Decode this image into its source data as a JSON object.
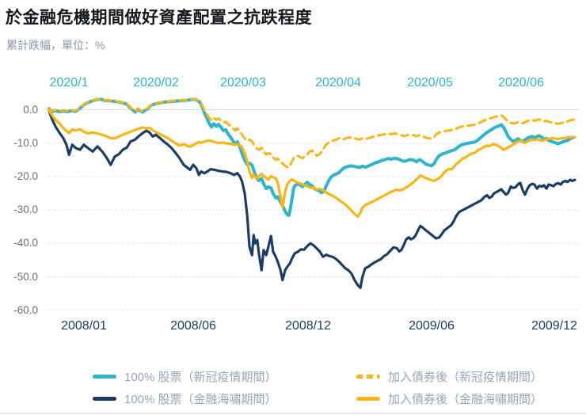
{
  "page": {
    "title": "於金融危機期間做好資產配置之抗跌程度",
    "subtitle": "累計跌幅，單位：%"
  },
  "chart_data": {
    "type": "line",
    "title": "於金融危機期間做好資產配置之抗跌程度",
    "ylabel": "累計跌幅，單位：%",
    "ylim": [
      -60,
      4
    ],
    "grid": "dotted-horizontal",
    "legend_position": "bottom",
    "y_ticks": [
      "0.0",
      "-10.0",
      "-20.0",
      "-30.0",
      "-40.0",
      "-50.0",
      "-60.0"
    ],
    "y_tick_values": [
      0,
      -10,
      -20,
      -30,
      -40,
      -50,
      -60
    ],
    "top_axis": {
      "color": "#2bb6cd",
      "labels": [
        "2020/1",
        "2020/02",
        "2020/03",
        "2020/04",
        "2020/05",
        "2020/06"
      ]
    },
    "bottom_axis": {
      "color": "#1c3e66",
      "labels": [
        "2008/01",
        "2008/06",
        "2008/12",
        "2009/06",
        "2009/12"
      ]
    },
    "t_crisis": [
      0,
      0.6,
      1.2,
      2.0,
      2.7,
      3.3,
      3.8,
      4.4,
      5.1,
      5.9,
      6.6,
      7.4,
      8.3,
      9.2,
      10.1,
      11.0,
      11.7,
      12.5,
      13.3,
      14.0,
      14.8,
      15.5,
      16.3,
      17.0,
      17.8,
      18.5,
      19.1,
      19.7,
      20.3,
      21.1,
      21.8,
      22.6,
      23.3,
      24.1,
      24.8,
      25.6,
      26.4,
      26.8,
      27.4,
      28.0,
      28.5,
      28.9,
      29.5,
      30.1,
      30.7,
      31.5,
      32.2,
      33.0,
      33.7,
      34.5,
      35.2,
      35.8,
      36.3,
      36.7,
      37.2,
      37.7,
      38.1,
      38.6,
      38.9,
      39.2,
      39.6,
      39.9,
      40.4,
      40.8,
      41.3,
      41.7,
      42.2,
      42.6,
      43.1,
      43.5,
      44.0,
      44.4,
      44.9,
      45.3,
      45.8,
      46.2,
      46.7,
      47.3,
      47.9,
      48.5,
      49.1,
      49.7,
      50.3,
      50.9,
      51.5,
      52.1,
      52.7,
      53.3,
      53.9,
      54.5,
      55.1,
      55.7,
      56.3,
      56.9,
      57.5,
      58.1,
      58.7,
      59.2,
      59.6,
      60.1,
      60.7,
      61.3,
      61.9,
      62.5,
      63.1,
      63.7,
      64.3,
      64.9,
      65.5,
      66.1,
      66.6,
      67.0,
      67.5,
      67.9,
      68.4,
      68.8,
      69.3,
      69.7,
      70.2,
      70.6,
      71.1,
      71.5,
      72.1,
      72.7,
      73.2,
      73.6,
      74.2,
      74.7,
      75.1,
      75.6,
      76.0,
      76.5,
      77.0,
      77.4,
      78.0,
      78.6,
      79.2,
      79.8,
      80.4,
      81.0,
      81.6,
      82.2,
      82.8,
      83.3,
      83.7,
      84.2,
      84.6,
      85.1,
      85.5,
      86.0,
      86.4,
      86.9,
      87.3,
      87.8,
      88.2,
      88.7,
      89.2,
      89.6,
      90.1,
      90.5,
      91.0,
      91.4,
      91.9,
      92.3,
      92.8,
      93.2,
      93.7,
      94.1,
      94.6,
      95.0,
      95.5,
      95.9,
      96.4,
      96.8,
      97.3,
      97.7,
      98.2,
      98.6,
      99.1,
      99.5,
      100
    ],
    "t_covid": [
      0,
      0.6,
      1.2,
      2.0,
      2.7,
      3.5,
      4.2,
      5.0,
      5.7,
      6.3,
      6.9,
      7.5,
      8.1,
      8.7,
      9.3,
      9.9,
      10.5,
      11.1,
      11.7,
      12.3,
      13.0,
      13.6,
      14.2,
      14.8,
      15.4,
      16.0,
      16.4,
      16.9,
      17.3,
      17.8,
      18.2,
      18.7,
      19.3,
      19.9,
      20.5,
      21.2,
      22.0,
      22.7,
      23.5,
      24.2,
      25.0,
      25.8,
      26.5,
      27.3,
      28.0,
      28.6,
      29.1,
      29.5,
      30.0,
      30.4,
      30.9,
      31.3,
      31.8,
      32.2,
      32.7,
      33.1,
      33.6,
      34.0,
      34.5,
      34.9,
      35.4,
      35.8,
      36.3,
      36.7,
      37.2,
      37.7,
      38.1,
      38.6,
      39.0,
      39.5,
      39.9,
      40.4,
      40.8,
      41.3,
      41.7,
      42.2,
      42.6,
      43.1,
      43.5,
      44.0,
      44.4,
      44.9,
      45.3,
      45.6,
      45.9,
      46.2,
      46.5,
      46.8,
      47.3,
      47.7,
      48.2,
      48.6,
      49.1,
      49.5,
      50.0,
      50.5,
      50.9,
      51.4,
      51.8,
      52.3,
      52.7,
      53.2,
      53.6,
      54.1,
      54.5,
      55.0,
      55.4,
      56.0,
      56.6,
      57.2,
      57.8,
      58.4,
      59.0,
      59.6,
      60.2,
      60.8,
      61.4,
      62.0,
      62.7,
      63.3,
      63.9,
      64.5,
      65.1,
      65.7,
      66.3,
      66.9,
      67.5,
      68.1,
      68.7,
      69.3,
      69.9,
      70.5,
      71.1,
      71.7,
      72.3,
      72.7,
      73.2,
      73.6,
      74.1,
      74.7,
      75.3,
      75.9,
      76.5,
      77.1,
      77.7,
      78.3,
      78.9,
      79.5,
      80.1,
      80.7,
      81.3,
      81.9,
      82.5,
      83.1,
      83.7,
      84.3,
      84.9,
      85.5,
      86.0,
      86.4,
      86.9,
      87.3,
      87.8,
      88.2,
      88.7,
      89.2,
      89.6,
      90.1,
      90.5,
      91.0,
      91.4,
      91.9,
      92.3,
      92.8,
      93.2,
      93.7,
      94.1,
      94.6,
      95.0,
      95.5,
      95.9,
      96.4,
      96.8,
      97.3,
      97.7,
      98.2,
      98.6,
      99.1,
      99.5,
      99.8
    ],
    "series": [
      {
        "key": "crisis-stock",
        "name": "100% 股票（金融海嘯期間）",
        "color": "#1c3e66",
        "dash": "solid",
        "width": 3.2,
        "t_ref": "t_crisis",
        "values": [
          -0.5,
          -3,
          -5,
          -7,
          -8.5,
          -10.5,
          -13.5,
          -10.5,
          -11.5,
          -12,
          -10.5,
          -11.5,
          -12.5,
          -11,
          -12.5,
          -14.5,
          -16.5,
          -14,
          -13.3,
          -12,
          -11.3,
          -9.5,
          -9,
          -8,
          -7,
          -6.3,
          -6.8,
          -8,
          -7.5,
          -8.5,
          -9.5,
          -10.5,
          -11.5,
          -13,
          -14.5,
          -16.5,
          -17.5,
          -18,
          -16.5,
          -17.5,
          -19.5,
          -18.5,
          -19,
          -18.5,
          -17.8,
          -18,
          -18.3,
          -18.5,
          -18.6,
          -19,
          -19.5,
          -19,
          -20,
          -21.5,
          -25,
          -32,
          -41,
          -43.5,
          -37.5,
          -40,
          -39,
          -43,
          -48,
          -42,
          -43.5,
          -41,
          -37.8,
          -42.5,
          -44,
          -45.5,
          -48,
          -51,
          -48,
          -47,
          -46,
          -44.5,
          -43,
          -42.5,
          -41.8,
          -41.9,
          -40.8,
          -40,
          -40.6,
          -41.5,
          -42.5,
          -44,
          -43.4,
          -43.8,
          -44,
          -44.6,
          -45.4,
          -46.4,
          -47.4,
          -48,
          -49,
          -51,
          -52.5,
          -53.3,
          -50,
          -47.5,
          -47,
          -46.3,
          -45.7,
          -45.2,
          -44.7,
          -43.8,
          -43.2,
          -42.2,
          -41.2,
          -41.4,
          -42.4,
          -42,
          -40.3,
          -38.8,
          -38.2,
          -38.8,
          -38.4,
          -37.6,
          -36,
          -34.8,
          -35.3,
          -35.9,
          -36.6,
          -37.4,
          -38,
          -38.5,
          -38.2,
          -37.2,
          -36.2,
          -35.6,
          -35.1,
          -34.5,
          -33.2,
          -31.9,
          -30.6,
          -30.1,
          -29.6,
          -29.1,
          -28.6,
          -28.1,
          -27.6,
          -27.1,
          -26.1,
          -25.6,
          -26.4,
          -26,
          -25.1,
          -24.6,
          -24.3,
          -23.8,
          -24.6,
          -25.4,
          -24.9,
          -23,
          -23.4,
          -23.2,
          -22.3,
          -21.9,
          -24.2,
          -25.4,
          -23.6,
          -22.6,
          -22.2,
          -22.4,
          -23.6,
          -22.8,
          -23,
          -22.6,
          -23.6,
          -22.4,
          -22.6,
          -22.9,
          -22.2,
          -22,
          -22.4,
          -21.6,
          -21.3,
          -21.6,
          -21,
          -21.3,
          -21
        ]
      },
      {
        "key": "covid-stock",
        "name": "100% 股票（新冠疫情期間）",
        "color": "#2bb6cd",
        "dash": "solid",
        "width": 4,
        "t_ref": "t_covid",
        "values": [
          0.3,
          -0.6,
          -0.3,
          -0.6,
          -0.4,
          -0.6,
          -0.3,
          -0.5,
          0.2,
          1,
          1.8,
          2.2,
          2.6,
          2.9,
          3.1,
          3.1,
          2.8,
          2.7,
          2.6,
          2.5,
          2.4,
          2.2,
          2,
          1.6,
          0.6,
          -0.2,
          -0.7,
          0.2,
          -0.3,
          -0.7,
          -0.2,
          0.2,
          1.2,
          1.6,
          1.9,
          2.1,
          2.3,
          2.4,
          2.5,
          2.6,
          2.7,
          2.8,
          2.9,
          3.1,
          3,
          2.4,
          1,
          -0.8,
          -2.5,
          -4,
          -5.2,
          -4.2,
          -5,
          -4.4,
          -5.2,
          -6.2,
          -6,
          -7.2,
          -8.2,
          -9.2,
          -10.4,
          -9.6,
          -11.2,
          -13.2,
          -15.2,
          -16.4,
          -16,
          -16.6,
          -18.6,
          -20.6,
          -21.2,
          -20.6,
          -22.2,
          -23.6,
          -23.1,
          -23.4,
          -25.1,
          -26.4,
          -26.1,
          -27.6,
          -28.6,
          -30.4,
          -31.4,
          -31.6,
          -29.5,
          -26.5,
          -23.5,
          -22.6,
          -22.2,
          -22.5,
          -23,
          -22.4,
          -21.7,
          -22.3,
          -22.8,
          -23.6,
          -24,
          -24.3,
          -24.8,
          -24.4,
          -22.8,
          -21.2,
          -20.2,
          -19.6,
          -19.3,
          -19,
          -18.4,
          -17.5,
          -17.1,
          -16.8,
          -16.9,
          -17.1,
          -17.3,
          -16.9,
          -17.2,
          -16.8,
          -16.4,
          -15.9,
          -15.6,
          -15.2,
          -14.9,
          -14.6,
          -14.8,
          -14.5,
          -14.7,
          -15.1,
          -15.5,
          -15.2,
          -14.9,
          -15.1,
          -15.6,
          -14.9,
          -15.6,
          -16.3,
          -16.6,
          -16.8,
          -16.2,
          -15,
          -13.9,
          -13.3,
          -13,
          -12.6,
          -12.3,
          -12,
          -11.3,
          -10.6,
          -10.3,
          -10.1,
          -9.9,
          -9.8,
          -9.4,
          -8.6,
          -7.8,
          -7,
          -6.4,
          -5.8,
          -5.2,
          -4.9,
          -4.5,
          -5.2,
          -6.6,
          -8,
          -8.9,
          -9.4,
          -9.2,
          -8.7,
          -9.2,
          -9.6,
          -9,
          -8.5,
          -8.2,
          -8,
          -8.4,
          -8,
          -7.8,
          -8.3,
          -8.9,
          -8.6,
          -9.2,
          -9.4,
          -9.7,
          -9.9,
          -10.2,
          -9.9,
          -9.6,
          -9.4,
          -9.2,
          -8.7,
          -8.4,
          -8.3
        ]
      },
      {
        "key": "crisis-bond",
        "name": "加入債券後（金融海嘯期間）",
        "color": "#f9b513",
        "dash": "solid",
        "width": 3.2,
        "t_ref": "t_crisis",
        "values": [
          -0.3,
          -1.8,
          -3,
          -4.2,
          -5.5,
          -6.4,
          -7,
          -5.9,
          -6.2,
          -5.8,
          -6.6,
          -7.1,
          -6.8,
          -7.1,
          -7.5,
          -8,
          -8.5,
          -8.6,
          -8,
          -7.5,
          -7,
          -6.6,
          -6.1,
          -5.7,
          -5.3,
          -5.6,
          -5.4,
          -6.1,
          -6.7,
          -7.3,
          -7.9,
          -8.5,
          -9.3,
          -10.1,
          -10.7,
          -10.3,
          -10.9,
          -11.1,
          -10.6,
          -10.1,
          -9.7,
          -9.9,
          -9.6,
          -9.3,
          -9.3,
          -9.7,
          -10,
          -9.8,
          -10.1,
          -10.2,
          -10.5,
          -10.3,
          -10.7,
          -11.2,
          -13,
          -15.5,
          -18.5,
          -20.4,
          -19.4,
          -20,
          -20.6,
          -19.8,
          -19.2,
          -19.8,
          -20.5,
          -20.9,
          -19.9,
          -20.2,
          -20.6,
          -21.8,
          -26,
          -29.2,
          -24.5,
          -22.4,
          -21.3,
          -20.9,
          -21.3,
          -21.9,
          -22.1,
          -22.6,
          -22.9,
          -23.4,
          -23.3,
          -23.9,
          -23.7,
          -24.1,
          -24.8,
          -25.3,
          -25.7,
          -26.3,
          -27,
          -27.6,
          -28.3,
          -29.2,
          -30.2,
          -31.2,
          -32,
          -30.8,
          -29.3,
          -28.6,
          -28.1,
          -27.7,
          -27.2,
          -26.7,
          -26.2,
          -25.7,
          -25.2,
          -24.7,
          -24.3,
          -23.9,
          -24.2,
          -24,
          -23.7,
          -23.2,
          -22.8,
          -22.3,
          -21.7,
          -21.1,
          -20.4,
          -19.7,
          -20,
          -20.4,
          -20.7,
          -21.1,
          -21.3,
          -21,
          -20.5,
          -19.7,
          -18.8,
          -18.2,
          -17.7,
          -17.9,
          -17.1,
          -16.3,
          -15.6,
          -14.7,
          -14.3,
          -13.6,
          -13.1,
          -12.9,
          -12.1,
          -11.6,
          -11.1,
          -10.7,
          -10.9,
          -10.5,
          -10.3,
          -10.6,
          -10.9,
          -11.4,
          -12,
          -11.7,
          -11.2,
          -10.9,
          -10.4,
          -9.9,
          -9.5,
          -9.3,
          -9.6,
          -9.9,
          -9.5,
          -9.2,
          -8.9,
          -9.1,
          -8.8,
          -9,
          -9.3,
          -9.1,
          -8.9,
          -8.7,
          -8.6,
          -8.5,
          -8.7,
          -8.8,
          -8.6,
          -8.5,
          -8.4,
          -8.3,
          -8.2,
          -8.2,
          -8.2
        ]
      },
      {
        "key": "covid-bond",
        "name": "加入債券後（新冠疫情期間）",
        "color": "#f9b513",
        "dash": "dashed",
        "width": 3,
        "t_ref": "t_covid",
        "values": [
          0.2,
          -0.3,
          -0.1,
          -0.4,
          -0.2,
          -0.4,
          -0.1,
          -0.3,
          0.3,
          1.1,
          1.9,
          2.3,
          2.7,
          3,
          3.2,
          3.2,
          2.9,
          2.8,
          2.7,
          2.6,
          2.5,
          2.3,
          2.1,
          1.7,
          0.8,
          0,
          -0.5,
          0.3,
          -0.1,
          -0.5,
          0,
          0.4,
          1.3,
          1.7,
          2,
          2.2,
          2.4,
          2.5,
          2.6,
          2.7,
          2.8,
          2.9,
          3,
          3.2,
          3.1,
          2.6,
          1.4,
          -0.2,
          -1.4,
          -2.4,
          -3.2,
          -2.5,
          -3,
          -2.6,
          -3.2,
          -3.8,
          -3.6,
          -4.3,
          -4.9,
          -5.5,
          -6.2,
          -5.6,
          -6.5,
          -7.5,
          -8.6,
          -9.4,
          -9,
          -9.5,
          -10.6,
          -11.6,
          -12,
          -11.4,
          -12.4,
          -13.4,
          -13,
          -13.3,
          -14.3,
          -15,
          -14.6,
          -15.5,
          -16.1,
          -16.8,
          -17.2,
          -17.3,
          -16.5,
          -15.5,
          -14.5,
          -14,
          -13.8,
          -14.1,
          -14.5,
          -14,
          -13.4,
          -12.6,
          -12.2,
          -13,
          -13.8,
          -13.4,
          -12.6,
          -11.4,
          -10.4,
          -9.8,
          -9.4,
          -9.2,
          -9,
          -8.7,
          -8.4,
          -8.8,
          -8.5,
          -8.3,
          -8.5,
          -8.7,
          -8.9,
          -8.6,
          -8.8,
          -8.5,
          -8.2,
          -7.9,
          -7.7,
          -7.5,
          -7.3,
          -7.1,
          -7.3,
          -7.1,
          -7.3,
          -7.6,
          -7.9,
          -7.6,
          -7.4,
          -7.6,
          -8,
          -7.6,
          -8,
          -8.4,
          -8.6,
          -8.7,
          -8.2,
          -7.4,
          -6.9,
          -6.6,
          -6.4,
          -6.2,
          -6.1,
          -5.9,
          -5.5,
          -5.1,
          -4.9,
          -4.8,
          -4.7,
          -4.6,
          -4.3,
          -3.9,
          -3.4,
          -3,
          -2.7,
          -2.4,
          -2.1,
          -1.9,
          -1.7,
          -2.1,
          -2.9,
          -3.5,
          -3.9,
          -4.1,
          -4,
          -3.7,
          -3.9,
          -4.1,
          -3.7,
          -3.4,
          -3.2,
          -3.1,
          -3.3,
          -3.1,
          -2.9,
          -3.2,
          -3.5,
          -3.3,
          -3.6,
          -3.8,
          -3.9,
          -4.1,
          -4.2,
          -4.1,
          -3.9,
          -3.7,
          -3.5,
          -3.2,
          -3,
          -3
        ]
      }
    ],
    "legend_order": [
      1,
      3,
      0,
      2
    ]
  }
}
